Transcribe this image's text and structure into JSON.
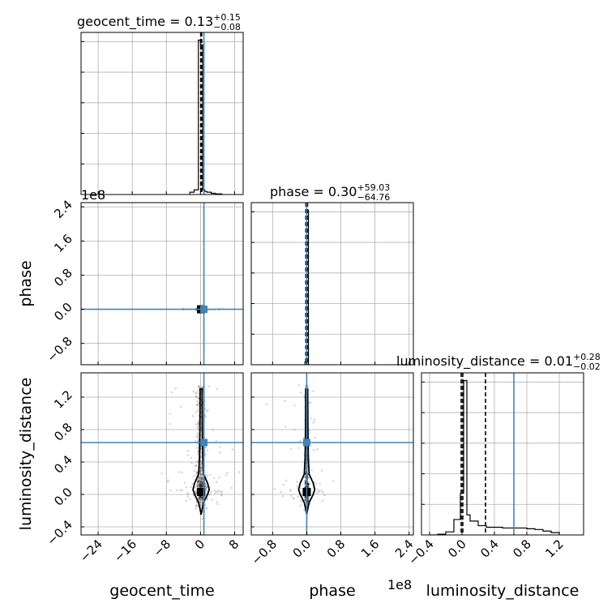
{
  "chart_data": {
    "type": "corner",
    "parameters": [
      "geocent_time",
      "phase",
      "luminosity_distance"
    ],
    "axis_labels": {
      "geocent_time": "geocent_time",
      "phase": "phase",
      "luminosity_distance": "luminosity_distance"
    },
    "titles": [
      {
        "param": "geocent_time",
        "name": "geocent_time",
        "median": "0.13",
        "plus": "+0.15",
        "minus": "−0.08"
      },
      {
        "param": "phase",
        "name": "phase",
        "median": "0.30",
        "plus": "+59.03",
        "minus": "−64.76"
      },
      {
        "param": "luminosity_distance",
        "name": "luminosity_distance",
        "median": "0.01",
        "plus": "+0.28",
        "minus": "−0.02"
      }
    ],
    "scale_offsets": [
      {
        "param": "phase",
        "text": "1e8"
      },
      {
        "param": "luminosity_distance",
        "text": "1e8"
      }
    ],
    "ranges": {
      "geocent_time": [
        -28,
        10
      ],
      "phase": [
        -1.3,
        2.5
      ],
      "luminosity_distance": [
        -0.5,
        1.5
      ]
    },
    "ticks": {
      "geocent_time": {
        "values": [
          -24,
          -16,
          -8,
          0,
          8
        ],
        "labels": [
          "−24",
          "−16",
          "−8",
          "0",
          "8"
        ]
      },
      "phase": {
        "values": [
          -0.8,
          0.0,
          0.8,
          1.6,
          2.4
        ],
        "labels": [
          "−0.8",
          "0.0",
          "0.8",
          "1.6",
          "2.4"
        ]
      },
      "luminosity_distance": {
        "values": [
          -0.4,
          0.0,
          0.4,
          0.8,
          1.2
        ],
        "labels": [
          "−0.4",
          "0.0",
          "0.4",
          "0.8",
          "1.2"
        ]
      }
    },
    "phase_y_ticks": {
      "values": [
        -0.8,
        0.0,
        0.8,
        1.6,
        2.4
      ],
      "labels": [
        "−0.8",
        "0.0",
        "0.8",
        "1.6",
        "2.4"
      ]
    },
    "dist_y_ticks": {
      "values": [
        -0.4,
        0.0,
        0.4,
        0.8,
        1.2
      ],
      "labels": [
        "−0.4",
        "0.0",
        "0.4",
        "0.8",
        "1.2"
      ]
    },
    "truths": {
      "geocent_time": 0.8,
      "phase": 0.0,
      "luminosity_distance": 0.64
    },
    "quantiles": {
      "geocent_time": [
        0.05,
        0.13,
        0.28
      ],
      "phase": [
        -0.02,
        0.0,
        0.02
      ],
      "luminosity_distance": [
        -0.01,
        0.01,
        0.29
      ]
    },
    "histograms": {
      "geocent_time": {
        "edges": [
          -2.5,
          -1.5,
          -0.5,
          0.0,
          0.5,
          1.0,
          1.5,
          2.5,
          3.5,
          5.0
        ],
        "counts": [
          0.015,
          0.03,
          1.0,
          0.97,
          0.03,
          0.02,
          0.015,
          0.008,
          0.004
        ],
        "ymax": 1.05
      },
      "phase": {
        "edges": [
          -0.04,
          0.0,
          0.04,
          0.08
        ],
        "counts": [
          0.02,
          1.0,
          0.0
        ],
        "ymax": 1.05
      },
      "luminosity_distance": {
        "edges": [
          -0.4,
          -0.3,
          -0.2,
          -0.1,
          -0.02,
          0.02,
          0.06,
          0.1,
          0.2,
          0.3,
          0.4,
          0.5,
          0.6,
          0.7,
          0.8,
          0.9,
          1.0,
          1.1,
          1.2
        ],
        "counts": [
          0.0,
          0.005,
          0.02,
          0.1,
          0.27,
          1.0,
          0.13,
          0.09,
          0.06,
          0.05,
          0.05,
          0.045,
          0.045,
          0.045,
          0.04,
          0.035,
          0.025,
          0.015
        ],
        "ymax": 1.05
      }
    },
    "truth_color": "#4682b4",
    "scatter_color": "#000000"
  }
}
